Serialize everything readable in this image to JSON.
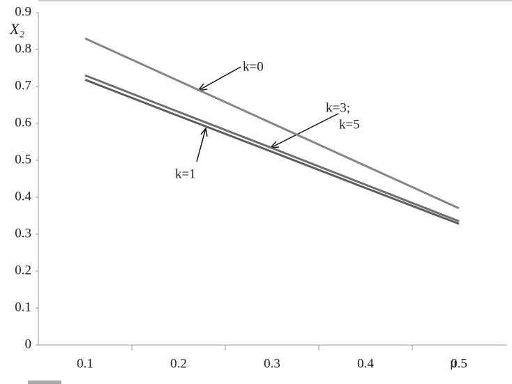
{
  "chart_data": {
    "type": "line",
    "y_label": "X₂",
    "x_label": "μ",
    "categories": [
      "0.1",
      "0.2",
      "0.3",
      "0.4",
      "0.5"
    ],
    "series": [
      {
        "color": "#858585",
        "values": [
          0.83,
          0.715,
          0.6,
          0.485,
          0.37
        ]
      },
      {
        "color": "#5e5e5e",
        "values": [
          0.718,
          0.62,
          0.523,
          0.425,
          0.328
        ]
      },
      {
        "color": "#6e6e6e",
        "values": [
          0.73,
          0.631,
          0.533,
          0.434,
          0.335
        ]
      }
    ],
    "annotations": [
      "k=0",
      "k=1",
      "k=3;",
      "k=5"
    ],
    "ylim": [
      0,
      0.9
    ],
    "yticks": [
      0,
      0.1,
      0.2,
      0.3,
      0.4,
      0.5,
      0.6,
      0.7,
      0.8,
      0.9
    ],
    "grid": false
  }
}
